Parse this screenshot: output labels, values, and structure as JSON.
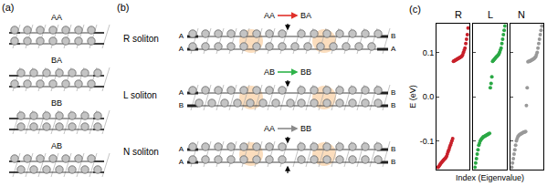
{
  "panels": {
    "a": {
      "label": "(a)",
      "stackings": [
        "AA",
        "BA",
        "BB",
        "AB"
      ]
    },
    "b": {
      "label": "(b)",
      "solitons": [
        {
          "name": "R soliton",
          "from": "AA",
          "to": "BA",
          "arrow_color": "#e0302a"
        },
        {
          "name": "L soliton",
          "from": "AB",
          "to": "BB",
          "arrow_color": "#2fb34a"
        },
        {
          "name": "N soliton",
          "from": "AA",
          "to": "BB",
          "arrow_color": "#8a8a8a"
        }
      ]
    },
    "c": {
      "label": "(c)",
      "xlabel": "Index (Eigenvalue)",
      "ylabel": "E (eV)"
    }
  },
  "chart_data": [
    {
      "type": "scatter",
      "title": "R",
      "color": "#c8202a",
      "marker": "circle",
      "x": [
        0,
        1,
        2,
        3,
        4,
        5,
        6,
        7,
        8,
        9,
        10,
        11,
        12,
        13,
        14,
        15,
        16,
        17,
        18,
        19,
        20,
        21,
        22,
        23,
        24,
        25,
        26,
        27,
        28,
        29,
        30,
        31,
        32,
        33,
        34,
        35,
        36,
        37,
        38,
        39
      ],
      "values": [
        -0.16,
        -0.158,
        -0.155,
        -0.152,
        -0.15,
        -0.148,
        -0.146,
        -0.144,
        -0.142,
        -0.14,
        -0.138,
        -0.135,
        -0.13,
        -0.125,
        -0.12,
        -0.115,
        -0.11,
        -0.105,
        -0.1,
        -0.095,
        0.08,
        0.081,
        0.082,
        0.083,
        0.084,
        0.085,
        0.086,
        0.087,
        0.088,
        0.089,
        0.09,
        0.092,
        0.095,
        0.1,
        0.105,
        0.11,
        0.12,
        0.13,
        0.14,
        0.155
      ],
      "xlim": [
        -2,
        41
      ],
      "ylim": [
        -0.165,
        0.165
      ],
      "yticks": [
        -0.1,
        {
          "value": 0,
          "label": "0.0"
        },
        0.1
      ],
      "tick_labels": "y"
    },
    {
      "type": "scatter",
      "title": "L",
      "color": "#2aa845",
      "marker": "circle",
      "x": [
        0,
        1,
        2,
        3,
        4,
        5,
        6,
        7,
        8,
        9,
        10,
        11,
        12,
        13,
        14,
        15,
        16,
        17,
        18,
        19,
        20,
        21,
        22,
        23,
        24,
        25,
        26,
        27,
        28,
        29,
        30,
        31,
        32,
        33,
        34,
        35,
        36,
        37,
        38,
        39
      ],
      "values": [
        -0.16,
        -0.15,
        -0.14,
        -0.13,
        -0.12,
        -0.11,
        -0.105,
        -0.1,
        -0.097,
        -0.095,
        -0.093,
        -0.091,
        -0.09,
        -0.089,
        -0.088,
        -0.087,
        -0.086,
        -0.085,
        -0.084,
        -0.083,
        0.02,
        0.03,
        0.045,
        0.08,
        0.082,
        0.084,
        0.086,
        0.088,
        0.09,
        0.092,
        0.094,
        0.096,
        0.1,
        0.105,
        0.11,
        0.12,
        0.13,
        0.14,
        0.15,
        0.16
      ],
      "xlim": [
        -2,
        41
      ],
      "ylim": [
        -0.165,
        0.165
      ],
      "yticks": [
        -0.1,
        {
          "value": 0,
          "label": "0.0"
        },
        0.1
      ],
      "tick_labels": false
    },
    {
      "type": "scatter",
      "title": "N",
      "color": "#999999",
      "marker": "circle",
      "x": [
        0,
        1,
        2,
        3,
        4,
        5,
        6,
        7,
        8,
        9,
        10,
        11,
        12,
        13,
        14,
        15,
        16,
        17,
        18,
        19,
        20,
        21,
        22,
        23,
        24,
        25,
        26,
        27,
        28,
        29,
        30,
        31,
        32,
        33,
        34,
        35,
        36,
        37,
        38,
        39
      ],
      "values": [
        -0.16,
        -0.15,
        -0.14,
        -0.13,
        -0.12,
        -0.11,
        -0.1,
        -0.095,
        -0.09,
        -0.088,
        -0.086,
        -0.085,
        -0.084,
        -0.083,
        -0.082,
        -0.081,
        -0.08,
        -0.08,
        -0.079,
        -0.02,
        0.02,
        0.079,
        0.08,
        0.08,
        0.081,
        0.082,
        0.083,
        0.084,
        0.085,
        0.086,
        0.088,
        0.09,
        0.095,
        0.1,
        0.11,
        0.12,
        0.13,
        0.14,
        0.15,
        0.16
      ],
      "xlim": [
        -2,
        41
      ],
      "ylim": [
        -0.165,
        0.165
      ],
      "yticks": [
        -0.1,
        {
          "value": 0,
          "label": "0.0"
        },
        0.1
      ],
      "tick_labels": false
    }
  ]
}
